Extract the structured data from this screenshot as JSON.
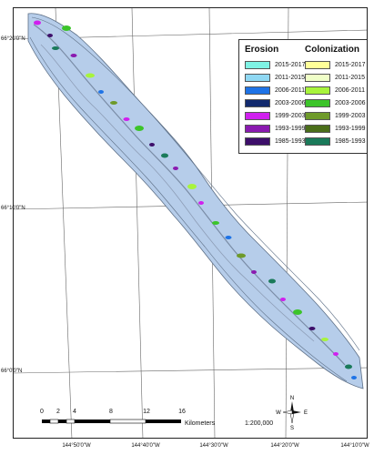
{
  "legend": {
    "erosion_title": "Erosion",
    "colonization_title": "Colonization",
    "erosion": [
      {
        "period": "2015-2017",
        "color": "#7ff2e4"
      },
      {
        "period": "2011-2015",
        "color": "#8fd8f3"
      },
      {
        "period": "2006-2011",
        "color": "#1e73e6"
      },
      {
        "period": "2003-2006",
        "color": "#122a6e"
      },
      {
        "period": "1999-2003",
        "color": "#d020ee"
      },
      {
        "period": "1993-1999",
        "color": "#8a1ab0"
      },
      {
        "period": "1985-1993",
        "color": "#3d0f6a"
      }
    ],
    "colonization": [
      {
        "period": "2015-2017",
        "color": "#ffff99"
      },
      {
        "period": "2011-2015",
        "color": "#f0ffc8"
      },
      {
        "period": "2006-2011",
        "color": "#a8f43c"
      },
      {
        "period": "2003-2006",
        "color": "#3cc42a"
      },
      {
        "period": "1999-2003",
        "color": "#6e9a2a"
      },
      {
        "period": "1993-1999",
        "color": "#4b6e1a"
      },
      {
        "period": "1985-1993",
        "color": "#1a7a5a"
      }
    ]
  },
  "latitude_labels": [
    "66°20'0\"N",
    "66°10'0\"N",
    "66°0'0\"N"
  ],
  "longitude_labels": [
    "144°50'0\"W",
    "144°40'0\"W",
    "144°30'0\"W",
    "144°20'0\"W",
    "144°10'0\"W"
  ],
  "scale_bar": {
    "ticks": [
      "0",
      "2",
      "4",
      "8",
      "12",
      "16"
    ],
    "unit": "Kilometers",
    "ratio": "1:200,000"
  },
  "north_arrow": {
    "n": "N",
    "s": "S",
    "e": "E",
    "w": "W"
  },
  "colors": {
    "channel": "#b6cdea",
    "channel_outline": "#5d6f86",
    "grid": "#666666"
  }
}
